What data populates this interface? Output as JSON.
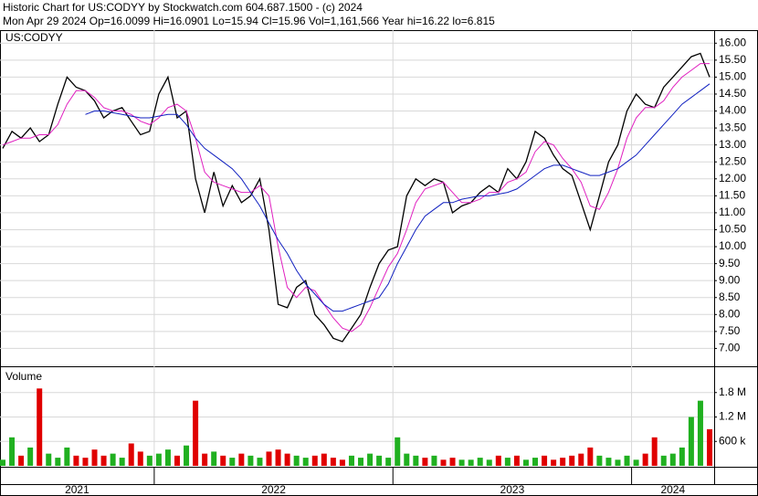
{
  "chart_data": [
    {
      "type": "line",
      "title": "Historic Chart for US:CODYY by Stockwatch.com 604.687.1500 - (c) 2024",
      "subtitle": "Mon Apr 29 2024   Op=16.0099   Hi=16.0901   Lo=15.94   Cl=15.96   Vol=1,161,566   Year hi=16.22   lo=6.815",
      "label": "US:CODYY",
      "categories": [
        "2021",
        null,
        null,
        null,
        null,
        null,
        null,
        null,
        null,
        null,
        null,
        null,
        null,
        null,
        null,
        null,
        null,
        "2022",
        null,
        null,
        null,
        null,
        null,
        null,
        null,
        null,
        null,
        null,
        null,
        null,
        null,
        null,
        null,
        null,
        null,
        null,
        null,
        null,
        null,
        null,
        null,
        null,
        null,
        "2023",
        null,
        null,
        null,
        null,
        null,
        null,
        null,
        null,
        null,
        null,
        null,
        null,
        null,
        null,
        null,
        null,
        null,
        null,
        null,
        null,
        null,
        null,
        null,
        null,
        null,
        "2024",
        null,
        null,
        null,
        null,
        null,
        null,
        null,
        null
      ],
      "series": [
        {
          "color": "#000000",
          "values": [
            12.9,
            13.4,
            13.2,
            13.5,
            13.1,
            13.3,
            14.2,
            15.0,
            14.7,
            14.6,
            14.3,
            13.8,
            14.0,
            14.1,
            13.7,
            13.3,
            13.4,
            14.5,
            15.0,
            13.8,
            14.0,
            12.0,
            11.0,
            12.2,
            11.2,
            11.8,
            11.3,
            11.5,
            12.0,
            10.5,
            8.3,
            8.2,
            8.8,
            9.0,
            8.0,
            7.7,
            7.3,
            7.2,
            7.6,
            8.0,
            8.8,
            9.5,
            9.9,
            10.0,
            11.5,
            12.0,
            11.8,
            12.0,
            11.9,
            11.0,
            11.2,
            11.3,
            11.6,
            11.8,
            11.6,
            12.3,
            12.0,
            12.5,
            13.4,
            13.2,
            12.7,
            12.3,
            12.1,
            11.3,
            10.5,
            11.5,
            12.5,
            13.0,
            14.0,
            14.5,
            14.2,
            14.1,
            14.7,
            15.0,
            15.3,
            15.6,
            15.7,
            15.0
          ]
        },
        {
          "color": "#e020c0",
          "values": [
            13.0,
            13.1,
            13.2,
            13.2,
            13.3,
            13.3,
            13.6,
            14.2,
            14.6,
            14.6,
            14.4,
            14.1,
            14.0,
            14.0,
            13.9,
            13.7,
            13.6,
            13.8,
            14.1,
            14.2,
            14.0,
            13.2,
            12.2,
            11.9,
            11.8,
            11.7,
            11.6,
            11.6,
            11.8,
            11.5,
            10.0,
            8.8,
            8.5,
            8.8,
            8.7,
            8.3,
            7.9,
            7.6,
            7.5,
            7.7,
            8.2,
            8.8,
            9.4,
            9.8,
            10.5,
            11.3,
            11.7,
            11.8,
            11.9,
            11.6,
            11.3,
            11.3,
            11.4,
            11.6,
            11.6,
            11.9,
            12.0,
            12.2,
            12.8,
            13.1,
            13.0,
            12.6,
            12.3,
            11.9,
            11.2,
            11.1,
            11.6,
            12.3,
            13.2,
            13.8,
            14.1,
            14.1,
            14.3,
            14.7,
            15.0,
            15.2,
            15.4,
            15.4
          ]
        },
        {
          "color": "#1020c0",
          "values": [
            null,
            null,
            null,
            null,
            null,
            null,
            null,
            null,
            null,
            13.9,
            14.0,
            14.0,
            13.95,
            13.9,
            13.85,
            13.8,
            13.8,
            13.85,
            13.9,
            13.9,
            13.6,
            13.2,
            12.9,
            12.7,
            12.5,
            12.3,
            12.0,
            11.6,
            11.2,
            10.7,
            10.2,
            9.8,
            9.3,
            8.9,
            8.6,
            8.3,
            8.1,
            8.1,
            8.2,
            8.3,
            8.4,
            8.5,
            8.9,
            9.5,
            10.0,
            10.5,
            10.9,
            11.1,
            11.3,
            11.3,
            11.4,
            11.45,
            11.5,
            11.5,
            11.55,
            11.6,
            11.7,
            11.9,
            12.1,
            12.3,
            12.4,
            12.4,
            12.3,
            12.2,
            12.1,
            12.1,
            12.2,
            12.3,
            12.5,
            12.7,
            13.0,
            13.3,
            13.6,
            13.9,
            14.2,
            14.4,
            14.6,
            14.8
          ]
        }
      ],
      "ylim": [
        6.5,
        16.25
      ],
      "yticks": [
        {
          "value": 7,
          "label": "7.00"
        },
        {
          "value": 7.5,
          "label": "7.50"
        },
        {
          "value": 8,
          "label": "8.00"
        },
        {
          "value": 8.5,
          "label": "8.50"
        },
        {
          "value": 9,
          "label": "9.00"
        },
        {
          "value": 9.5,
          "label": "9.50"
        },
        {
          "value": 10,
          "label": "10.00"
        },
        {
          "value": 10.5,
          "label": "10.50"
        },
        {
          "value": 11,
          "label": "11.00"
        },
        {
          "value": 11.5,
          "label": "11.50"
        },
        {
          "value": 12,
          "label": "12.00"
        },
        {
          "value": 12.5,
          "label": "12.50"
        },
        {
          "value": 13,
          "label": "13.00"
        },
        {
          "value": 13.5,
          "label": "13.50"
        },
        {
          "value": 14,
          "label": "14.00"
        },
        {
          "value": 14.5,
          "label": "14.50"
        },
        {
          "value": 15,
          "label": "15.00"
        },
        {
          "value": 15.5,
          "label": "15.50"
        },
        {
          "value": 16,
          "label": "16.00"
        }
      ],
      "grid": true
    },
    {
      "type": "bar",
      "label": "Volume",
      "up_color": "#20b020",
      "down_color": "#e00000",
      "values": [
        150000,
        700000,
        250000,
        450000,
        1900000,
        300000,
        200000,
        450000,
        250000,
        200000,
        400000,
        250000,
        300000,
        200000,
        550000,
        350000,
        250000,
        300000,
        400000,
        250000,
        500000,
        1600000,
        300000,
        350000,
        250000,
        200000,
        300000,
        250000,
        200000,
        350000,
        400000,
        300000,
        250000,
        200000,
        250000,
        300000,
        200000,
        150000,
        250000,
        200000,
        300000,
        250000,
        200000,
        700000,
        300000,
        250000,
        200000,
        250000,
        150000,
        200000,
        150000,
        150000,
        200000,
        150000,
        250000,
        200000,
        250000,
        150000,
        200000,
        250000,
        150000,
        200000,
        250000,
        300000,
        450000,
        250000,
        200000,
        150000,
        250000,
        150000,
        300000,
        700000,
        250000,
        300000,
        450000,
        1200000,
        1600000,
        900000
      ],
      "ylim": [
        0,
        2400000
      ],
      "yticks": [
        {
          "value": 600000,
          "label": "600 k"
        },
        {
          "value": 1200000,
          "label": "1.2 M"
        },
        {
          "value": 1800000,
          "label": "1.8 M"
        }
      ],
      "grid": true
    }
  ]
}
